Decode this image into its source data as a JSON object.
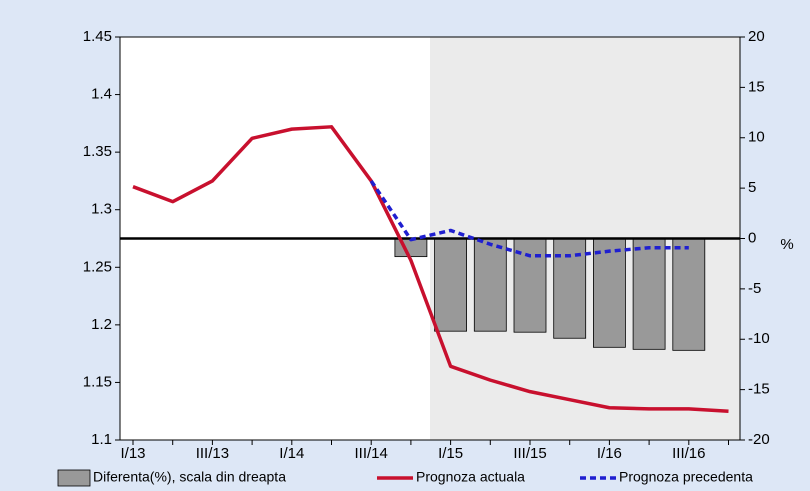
{
  "chart_data": {
    "type": "combo",
    "categories": [
      "I/13",
      null,
      "III/13",
      null,
      "I/14",
      null,
      "III/14",
      null,
      "I/15",
      null,
      "III/15",
      null,
      "I/16",
      null,
      "III/16",
      null
    ],
    "series": [
      {
        "name": "Diferenta(%), scala din dreapta",
        "type": "bar",
        "axis": "y2",
        "color": "#999999",
        "values": [
          null,
          null,
          null,
          null,
          null,
          null,
          null,
          -1.8,
          -9.2,
          -9.2,
          -9.3,
          -9.9,
          -10.8,
          -11,
          -11.1,
          null
        ]
      },
      {
        "name": "Prognoza actuala",
        "type": "line",
        "color": "#c8102e",
        "values": [
          1.32,
          1.307,
          1.325,
          1.362,
          1.37,
          1.372,
          1.325,
          1.256,
          1.164,
          1.152,
          1.142,
          1.135,
          1.128,
          1.127,
          1.127,
          1.125
        ]
      },
      {
        "name": "Prognoza precedenta",
        "type": "line",
        "dashed": true,
        "color": "#1f1fd0",
        "values": [
          null,
          null,
          null,
          null,
          null,
          null,
          1.325,
          1.274,
          1.282,
          1.27,
          1.26,
          1.26,
          1.264,
          1.267,
          1.267,
          null
        ]
      }
    ],
    "ylim": [
      1.1,
      1.45
    ],
    "yticks": [
      1.1,
      1.15,
      1.2,
      1.25,
      1.3,
      1.35,
      1.4,
      1.45
    ],
    "y2lim": [
      -20,
      20
    ],
    "y2ticks": [
      -20,
      -15,
      -10,
      -5,
      0,
      5,
      10,
      15,
      20
    ],
    "y2label": "%"
  }
}
